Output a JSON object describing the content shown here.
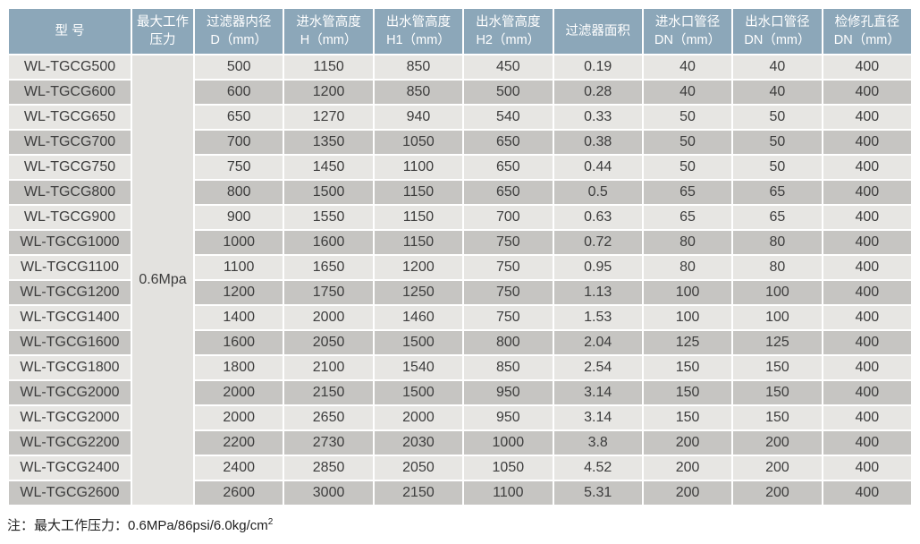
{
  "colors": {
    "header_bg": "#8CA7B9",
    "header_text": "#FFFFFF",
    "row_light": "#E7E6E3",
    "row_dark": "#C6C5C2",
    "pressure_bg": "#E3E2DF",
    "body_text": "#3D3D3D",
    "note_text": "#1F1F1F"
  },
  "table": {
    "headers": [
      [
        "型 号"
      ],
      [
        "最大工作",
        "压力"
      ],
      [
        "过滤器内径",
        "D（mm）"
      ],
      [
        "进水管高度",
        "H（mm）"
      ],
      [
        "出水管高度",
        "H1（mm）"
      ],
      [
        "出水管高度",
        "H2（mm）"
      ],
      [
        "过滤器面积"
      ],
      [
        "进水口管径",
        "DN（mm）"
      ],
      [
        "出水口管径",
        "DN（mm）"
      ],
      [
        "检修孔直径",
        "DN（mm）"
      ]
    ],
    "pressure_value": "0.6Mpa",
    "rows": [
      {
        "model": "WL-TGCG500",
        "values": [
          "500",
          "1150",
          "850",
          "450",
          "0.19",
          "40",
          "40",
          "400"
        ]
      },
      {
        "model": "WL-TGCG600",
        "values": [
          "600",
          "1200",
          "850",
          "500",
          "0.28",
          "40",
          "40",
          "400"
        ]
      },
      {
        "model": "WL-TGCG650",
        "values": [
          "650",
          "1270",
          "940",
          "540",
          "0.33",
          "50",
          "50",
          "400"
        ]
      },
      {
        "model": "WL-TGCG700",
        "values": [
          "700",
          "1350",
          "1050",
          "650",
          "0.38",
          "50",
          "50",
          "400"
        ]
      },
      {
        "model": "WL-TGCG750",
        "values": [
          "750",
          "1450",
          "1100",
          "650",
          "0.44",
          "50",
          "50",
          "400"
        ]
      },
      {
        "model": "WL-TGCG800",
        "values": [
          "800",
          "1500",
          "1150",
          "650",
          "0.5",
          "65",
          "65",
          "400"
        ]
      },
      {
        "model": "WL-TGCG900",
        "values": [
          "900",
          "1550",
          "1150",
          "700",
          "0.63",
          "65",
          "65",
          "400"
        ]
      },
      {
        "model": "WL-TGCG1000",
        "values": [
          "1000",
          "1600",
          "1150",
          "750",
          "0.72",
          "80",
          "80",
          "400"
        ]
      },
      {
        "model": "WL-TGCG1100",
        "values": [
          "1100",
          "1650",
          "1200",
          "750",
          "0.95",
          "80",
          "80",
          "400"
        ]
      },
      {
        "model": "WL-TGCG1200",
        "values": [
          "1200",
          "1750",
          "1250",
          "750",
          "1.13",
          "100",
          "100",
          "400"
        ]
      },
      {
        "model": "WL-TGCG1400",
        "values": [
          "1400",
          "2000",
          "1460",
          "750",
          "1.53",
          "100",
          "100",
          "400"
        ]
      },
      {
        "model": "WL-TGCG1600",
        "values": [
          "1600",
          "2050",
          "1500",
          "800",
          "2.04",
          "125",
          "125",
          "400"
        ]
      },
      {
        "model": "WL-TGCG1800",
        "values": [
          "1800",
          "2100",
          "1540",
          "850",
          "2.54",
          "150",
          "150",
          "400"
        ]
      },
      {
        "model": "WL-TGCG2000",
        "values": [
          "2000",
          "2150",
          "1500",
          "950",
          "3.14",
          "150",
          "150",
          "400"
        ]
      },
      {
        "model": "WL-TGCG2000",
        "values": [
          "2000",
          "2650",
          "2000",
          "950",
          "3.14",
          "150",
          "150",
          "400"
        ]
      },
      {
        "model": "WL-TGCG2200",
        "values": [
          "2200",
          "2730",
          "2030",
          "1000",
          "3.8",
          "200",
          "200",
          "400"
        ]
      },
      {
        "model": "WL-TGCG2400",
        "values": [
          "2400",
          "2850",
          "2050",
          "1050",
          "4.52",
          "200",
          "200",
          "400"
        ]
      },
      {
        "model": "WL-TGCG2600",
        "values": [
          "2600",
          "3000",
          "2150",
          "1100",
          "5.31",
          "200",
          "200",
          "400"
        ]
      }
    ]
  },
  "note": {
    "text": "注：最大工作压力：0.6MPa/86psi/6.0kg/cm",
    "sup": "2"
  }
}
